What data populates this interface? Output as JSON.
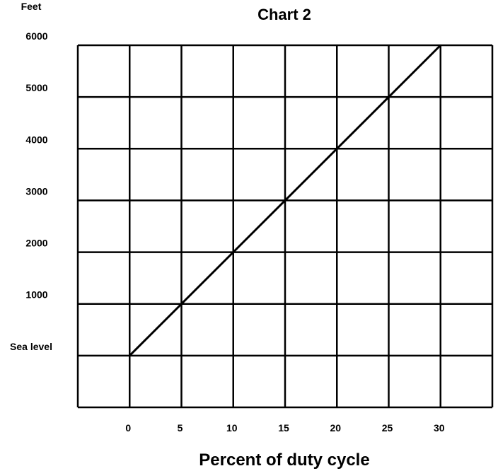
{
  "chart_data": {
    "type": "line",
    "title": "Chart 2",
    "ylabel": "Feet",
    "xlabel": "Percent of duty cycle",
    "x_ticks": [
      0,
      5,
      10,
      15,
      20,
      25,
      30
    ],
    "y_ticks": [
      0,
      1000,
      2000,
      3000,
      4000,
      5000,
      6000
    ],
    "y_tick_labels": [
      "Sea level",
      "1000",
      "2000",
      "3000",
      "4000",
      "5000",
      "6000"
    ],
    "xlim": [
      -5,
      35
    ],
    "ylim": [
      -1000,
      6000
    ],
    "grid": true,
    "series": [
      {
        "x": [
          0,
          5,
          10,
          15,
          20,
          25,
          30
        ],
        "y": [
          0,
          1000,
          2000,
          3000,
          4000,
          5000,
          6000
        ],
        "color": "#000000"
      }
    ]
  }
}
